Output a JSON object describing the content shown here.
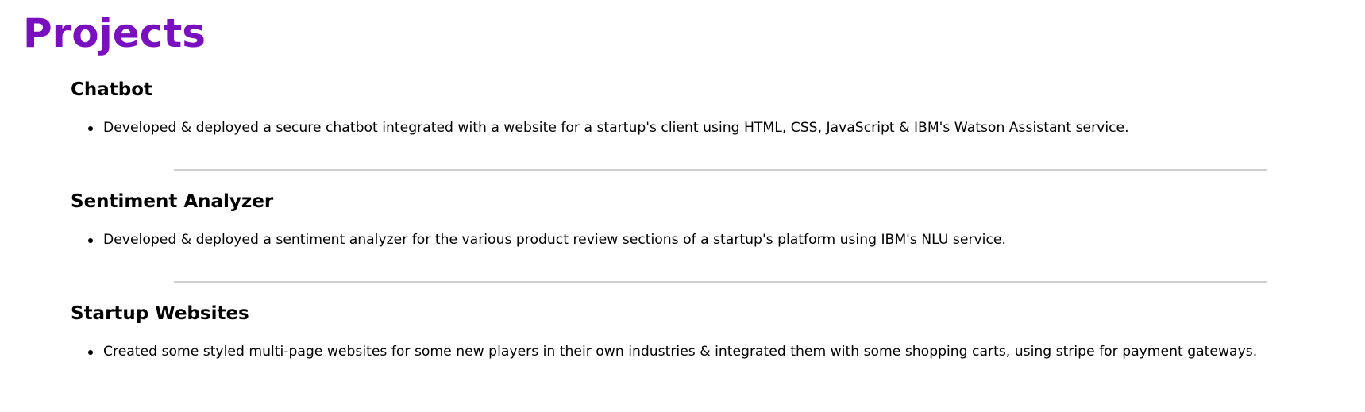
{
  "page": {
    "title": "Projects",
    "accent_color": "#7a0fc0"
  },
  "projects": [
    {
      "title": "Chatbot",
      "items": [
        "Developed & deployed a secure chatbot integrated with a website for a startup's client using HTML, CSS, JavaScript & IBM's Watson Assistant service."
      ]
    },
    {
      "title": "Sentiment Analyzer",
      "items": [
        "Developed & deployed a sentiment analyzer for the various product review sections of a startup's platform using IBM's NLU service."
      ]
    },
    {
      "title": "Startup Websites",
      "items": [
        "Created some styled multi-page websites for some new players in their own industries & integrated them with some shopping carts, using stripe for payment gateways."
      ]
    }
  ]
}
